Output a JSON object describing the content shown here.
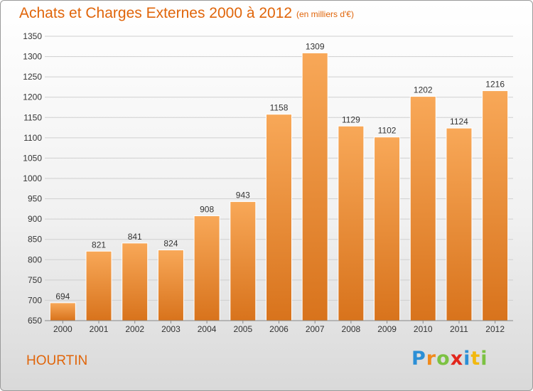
{
  "header": {
    "title": "Achats et Charges Externes 2000 à 2012",
    "unit": "(en milliers d'€)"
  },
  "footer": {
    "place": "HOURTIN",
    "brand_letters": [
      "P",
      "r",
      "o",
      "x",
      "i",
      "t",
      "i"
    ],
    "brand_colors": [
      "#2b8fd6",
      "#f08a1c",
      "#7cc242",
      "#e2261c",
      "#2b8fd6",
      "#f2b80f",
      "#7cc242"
    ]
  },
  "colors": {
    "accent": "#e0650a",
    "bar_top": "#f8a858",
    "bar_bottom": "#d8731c",
    "bar_edge": "#ffffff",
    "grid": "#cfcfcf",
    "axis_text": "#333333"
  },
  "chart_data": {
    "type": "bar",
    "title": "Achats et Charges Externes 2000 à 2012",
    "subtitle": "(en milliers d'€)",
    "xlabel": "",
    "ylabel": "",
    "categories": [
      "2000",
      "2001",
      "2002",
      "2003",
      "2004",
      "2005",
      "2006",
      "2007",
      "2008",
      "2009",
      "2010",
      "2011",
      "2012"
    ],
    "values": [
      694,
      821,
      841,
      824,
      908,
      943,
      1158,
      1309,
      1129,
      1102,
      1202,
      1124,
      1216
    ],
    "ylim": [
      650,
      1350
    ],
    "yticks": [
      650,
      700,
      750,
      800,
      850,
      900,
      950,
      1000,
      1050,
      1100,
      1150,
      1200,
      1250,
      1300,
      1350
    ],
    "grid": true,
    "legend": "none"
  }
}
